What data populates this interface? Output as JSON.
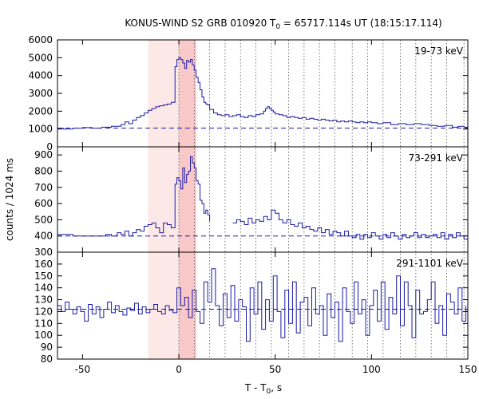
{
  "chart_data": {
    "type": "line",
    "title": {
      "prefix": "KONUS-WIND S2 GRB 010920 T",
      "subscript": "0",
      "suffix": " = 65717.114s UT (18:15:17.114)"
    },
    "xlabel": {
      "prefix": "T - T",
      "subscript": "0",
      "suffix": ", s"
    },
    "ylabel": "counts / 1024 ms",
    "xlim": [
      -63,
      150
    ],
    "xticks": [
      -50,
      0,
      50,
      100,
      150
    ],
    "xtick_labels": [
      "-50",
      "0",
      "50",
      "100",
      "150"
    ],
    "shaded_regions": [
      {
        "name": "light",
        "x0": -16,
        "x1": 9,
        "color": "#fde8e8"
      },
      {
        "name": "dark",
        "x0": 0,
        "x1": 9,
        "color": "#f9c8c8"
      }
    ],
    "vertical_markers": [
      0,
      8,
      16,
      24,
      32,
      40,
      48,
      57,
      65,
      73,
      81,
      90,
      98,
      106,
      115,
      123,
      131,
      139,
      148
    ],
    "line_color": "#1a1aa6",
    "panels": [
      {
        "label": "19-73 keV",
        "ylim": [
          0,
          6000
        ],
        "yticks": [
          0,
          1000,
          2000,
          3000,
          4000,
          5000,
          6000
        ],
        "ytick_labels": [
          "0",
          "1000",
          "2000",
          "3000",
          "4000",
          "5000",
          "6000"
        ],
        "background": 1050,
        "series": [
          {
            "x": [
              -63,
              -60,
              -55,
              -50,
              -45,
              -40,
              -35,
              -30,
              -28,
              -26,
              -24,
              -22,
              -20,
              -18,
              -16,
              -14,
              -12,
              -10,
              -8,
              -6,
              -4,
              -2,
              -1,
              0,
              1,
              2,
              3,
              4,
              5,
              6,
              7,
              8,
              9,
              10,
              11,
              12,
              13,
              14,
              15,
              16,
              18,
              20,
              22,
              24,
              26,
              28,
              30,
              32,
              34,
              36,
              38,
              40,
              42,
              44,
              45,
              46,
              47,
              48,
              49,
              50,
              52,
              54,
              56,
              58,
              60,
              62,
              64,
              66,
              68,
              70,
              72,
              74,
              76,
              78,
              80,
              82,
              84,
              86,
              88,
              90,
              92,
              94,
              96,
              98,
              100,
              103,
              106,
              110,
              114,
              118,
              122,
              126,
              130,
              134,
              138,
              142,
              145,
              148,
              150
            ],
            "y": [
              1050,
              1000,
              1050,
              1080,
              1050,
              1100,
              1150,
              1250,
              1400,
              1300,
              1500,
              1650,
              1750,
              1900,
              2050,
              2150,
              2250,
              2300,
              2350,
              2400,
              2500,
              4500,
              4900,
              5000,
              4900,
              4700,
              4400,
              4850,
              4750,
              4900,
              4600,
              4300,
              3900,
              3600,
              3200,
              2800,
              2500,
              2400,
              2350,
              2100,
              1900,
              1800,
              1750,
              1800,
              1700,
              1750,
              1800,
              1700,
              1650,
              1750,
              1700,
              1800,
              1850,
              2000,
              2150,
              2250,
              2150,
              2050,
              1950,
              1850,
              1800,
              1750,
              1650,
              1700,
              1650,
              1600,
              1650,
              1550,
              1600,
              1550,
              1500,
              1550,
              1500,
              1450,
              1500,
              1400,
              1450,
              1400,
              1450,
              1400,
              1350,
              1400,
              1350,
              1400,
              1350,
              1300,
              1350,
              1250,
              1300,
              1250,
              1300,
              1250,
              1200,
              1150,
              1200,
              1100,
              1150,
              1100,
              1050
            ]
          }
        ]
      },
      {
        "label": "73-291 keV",
        "ylim": [
          300,
          950
        ],
        "yticks": [
          300,
          400,
          500,
          600,
          700,
          800,
          900
        ],
        "ytick_labels": [
          "300",
          "400",
          "500",
          "600",
          "700",
          "800",
          "900"
        ],
        "background": 400,
        "series": [
          {
            "x": [
              -63,
              -55,
              -48,
              -42,
              -38,
              -35,
              -32,
              -30,
              -28,
              -26,
              -24,
              -22,
              -20,
              -18,
              -16,
              -14,
              -12,
              -10,
              -8,
              -6,
              -4,
              -2,
              -1,
              0,
              1,
              2,
              3,
              4,
              5,
              6,
              7,
              8,
              9,
              10,
              11,
              12,
              13,
              14,
              15,
              16
            ],
            "y": [
              410,
              400,
              400,
              400,
              410,
              400,
              420,
              410,
              430,
              400,
              420,
              440,
              430,
              460,
              470,
              480,
              450,
              420,
              480,
              470,
              450,
              720,
              760,
              740,
              690,
              820,
              730,
              780,
              800,
              890,
              850,
              820,
              740,
              720,
              620,
              600,
              540,
              560,
              530,
              490
            ]
          },
          {
            "x": [
              28,
              30,
              32,
              34,
              36,
              38,
              40,
              42,
              44,
              46,
              48,
              50,
              52,
              54,
              56,
              58,
              60,
              62,
              64,
              66,
              68,
              70,
              72,
              74,
              76,
              78,
              80,
              82,
              84,
              86,
              88,
              90,
              92,
              94,
              96,
              98,
              100,
              102,
              104,
              106,
              108,
              110,
              112,
              114,
              116,
              118,
              120,
              122,
              124,
              126,
              128,
              130,
              132,
              134,
              136,
              138,
              140,
              142,
              144,
              146,
              148,
              150
            ],
            "y": [
              480,
              500,
              490,
              470,
              510,
              480,
              500,
              490,
              520,
              500,
              560,
              540,
              500,
              480,
              500,
              470,
              460,
              480,
              450,
              460,
              440,
              430,
              450,
              420,
              440,
              410,
              430,
              420,
              400,
              430,
              400,
              390,
              410,
              380,
              410,
              390,
              420,
              400,
              380,
              410,
              390,
              420,
              400,
              380,
              410,
              390,
              400,
              420,
              390,
              410,
              390,
              400,
              410,
              390,
              420,
              380,
              410,
              390,
              420,
              400,
              380,
              430
            ]
          }
        ]
      },
      {
        "label": "291-1101 keV",
        "ylim": [
          80,
          170
        ],
        "yticks": [
          80,
          90,
          100,
          110,
          120,
          130,
          140,
          150,
          160
        ],
        "ytick_labels": [
          "80",
          "90",
          "100",
          "110",
          "120",
          "130",
          "140",
          "150",
          "160"
        ],
        "background": 122,
        "series": [
          {
            "x": [
              -63,
              -61,
              -59,
              -57,
              -55,
              -53,
              -51,
              -49,
              -47,
              -45,
              -43,
              -41,
              -39,
              -37,
              -35,
              -33,
              -31,
              -29,
              -27,
              -25,
              -23,
              -21,
              -19,
              -17,
              -15,
              -13,
              -11,
              -9,
              -7,
              -5,
              -3,
              -1,
              1,
              3,
              5,
              7,
              9,
              11,
              13,
              15,
              17,
              19,
              21,
              23,
              25,
              27,
              29,
              31,
              33,
              35,
              37,
              39,
              41,
              43,
              45,
              47,
              49,
              51,
              53,
              55,
              57,
              59,
              61,
              63,
              65,
              67,
              69,
              71,
              73,
              75,
              77,
              79,
              81,
              83,
              85,
              87,
              89,
              91,
              93,
              95,
              97,
              99,
              101,
              103,
              105,
              107,
              109,
              111,
              113,
              115,
              117,
              119,
              121,
              123,
              125,
              127,
              129,
              131,
              133,
              135,
              137,
              139,
              141,
              143,
              145,
              147,
              149
            ],
            "y": [
              125,
              120,
              128,
              122,
              118,
              124,
              120,
              112,
              126,
              118,
              124,
              115,
              122,
              128,
              119,
              125,
              120,
              117,
              123,
              121,
              127,
              118,
              124,
              119,
              122,
              126,
              120,
              118,
              125,
              121,
              119,
              140,
              125,
              132,
              115,
              138,
              120,
              110,
              145,
              128,
              156,
              125,
              108,
              135,
              115,
              142,
              112,
              130,
              124,
              95,
              140,
              118,
              145,
              105,
              130,
              112,
              150,
              120,
              98,
              138,
              110,
              145,
              102,
              128,
              132,
              108,
              140,
              118,
              125,
              100,
              135,
              115,
              128,
              95,
              140,
              120,
              110,
              145,
              118,
              130,
              100,
              125,
              138,
              112,
              145,
              105,
              132,
              118,
              150,
              108,
              145,
              125,
              98,
              138,
              118,
              120,
              130,
              145,
              110,
              125,
              100,
              135,
              128,
              118,
              140,
              112,
              125
            ]
          }
        ]
      }
    ]
  }
}
